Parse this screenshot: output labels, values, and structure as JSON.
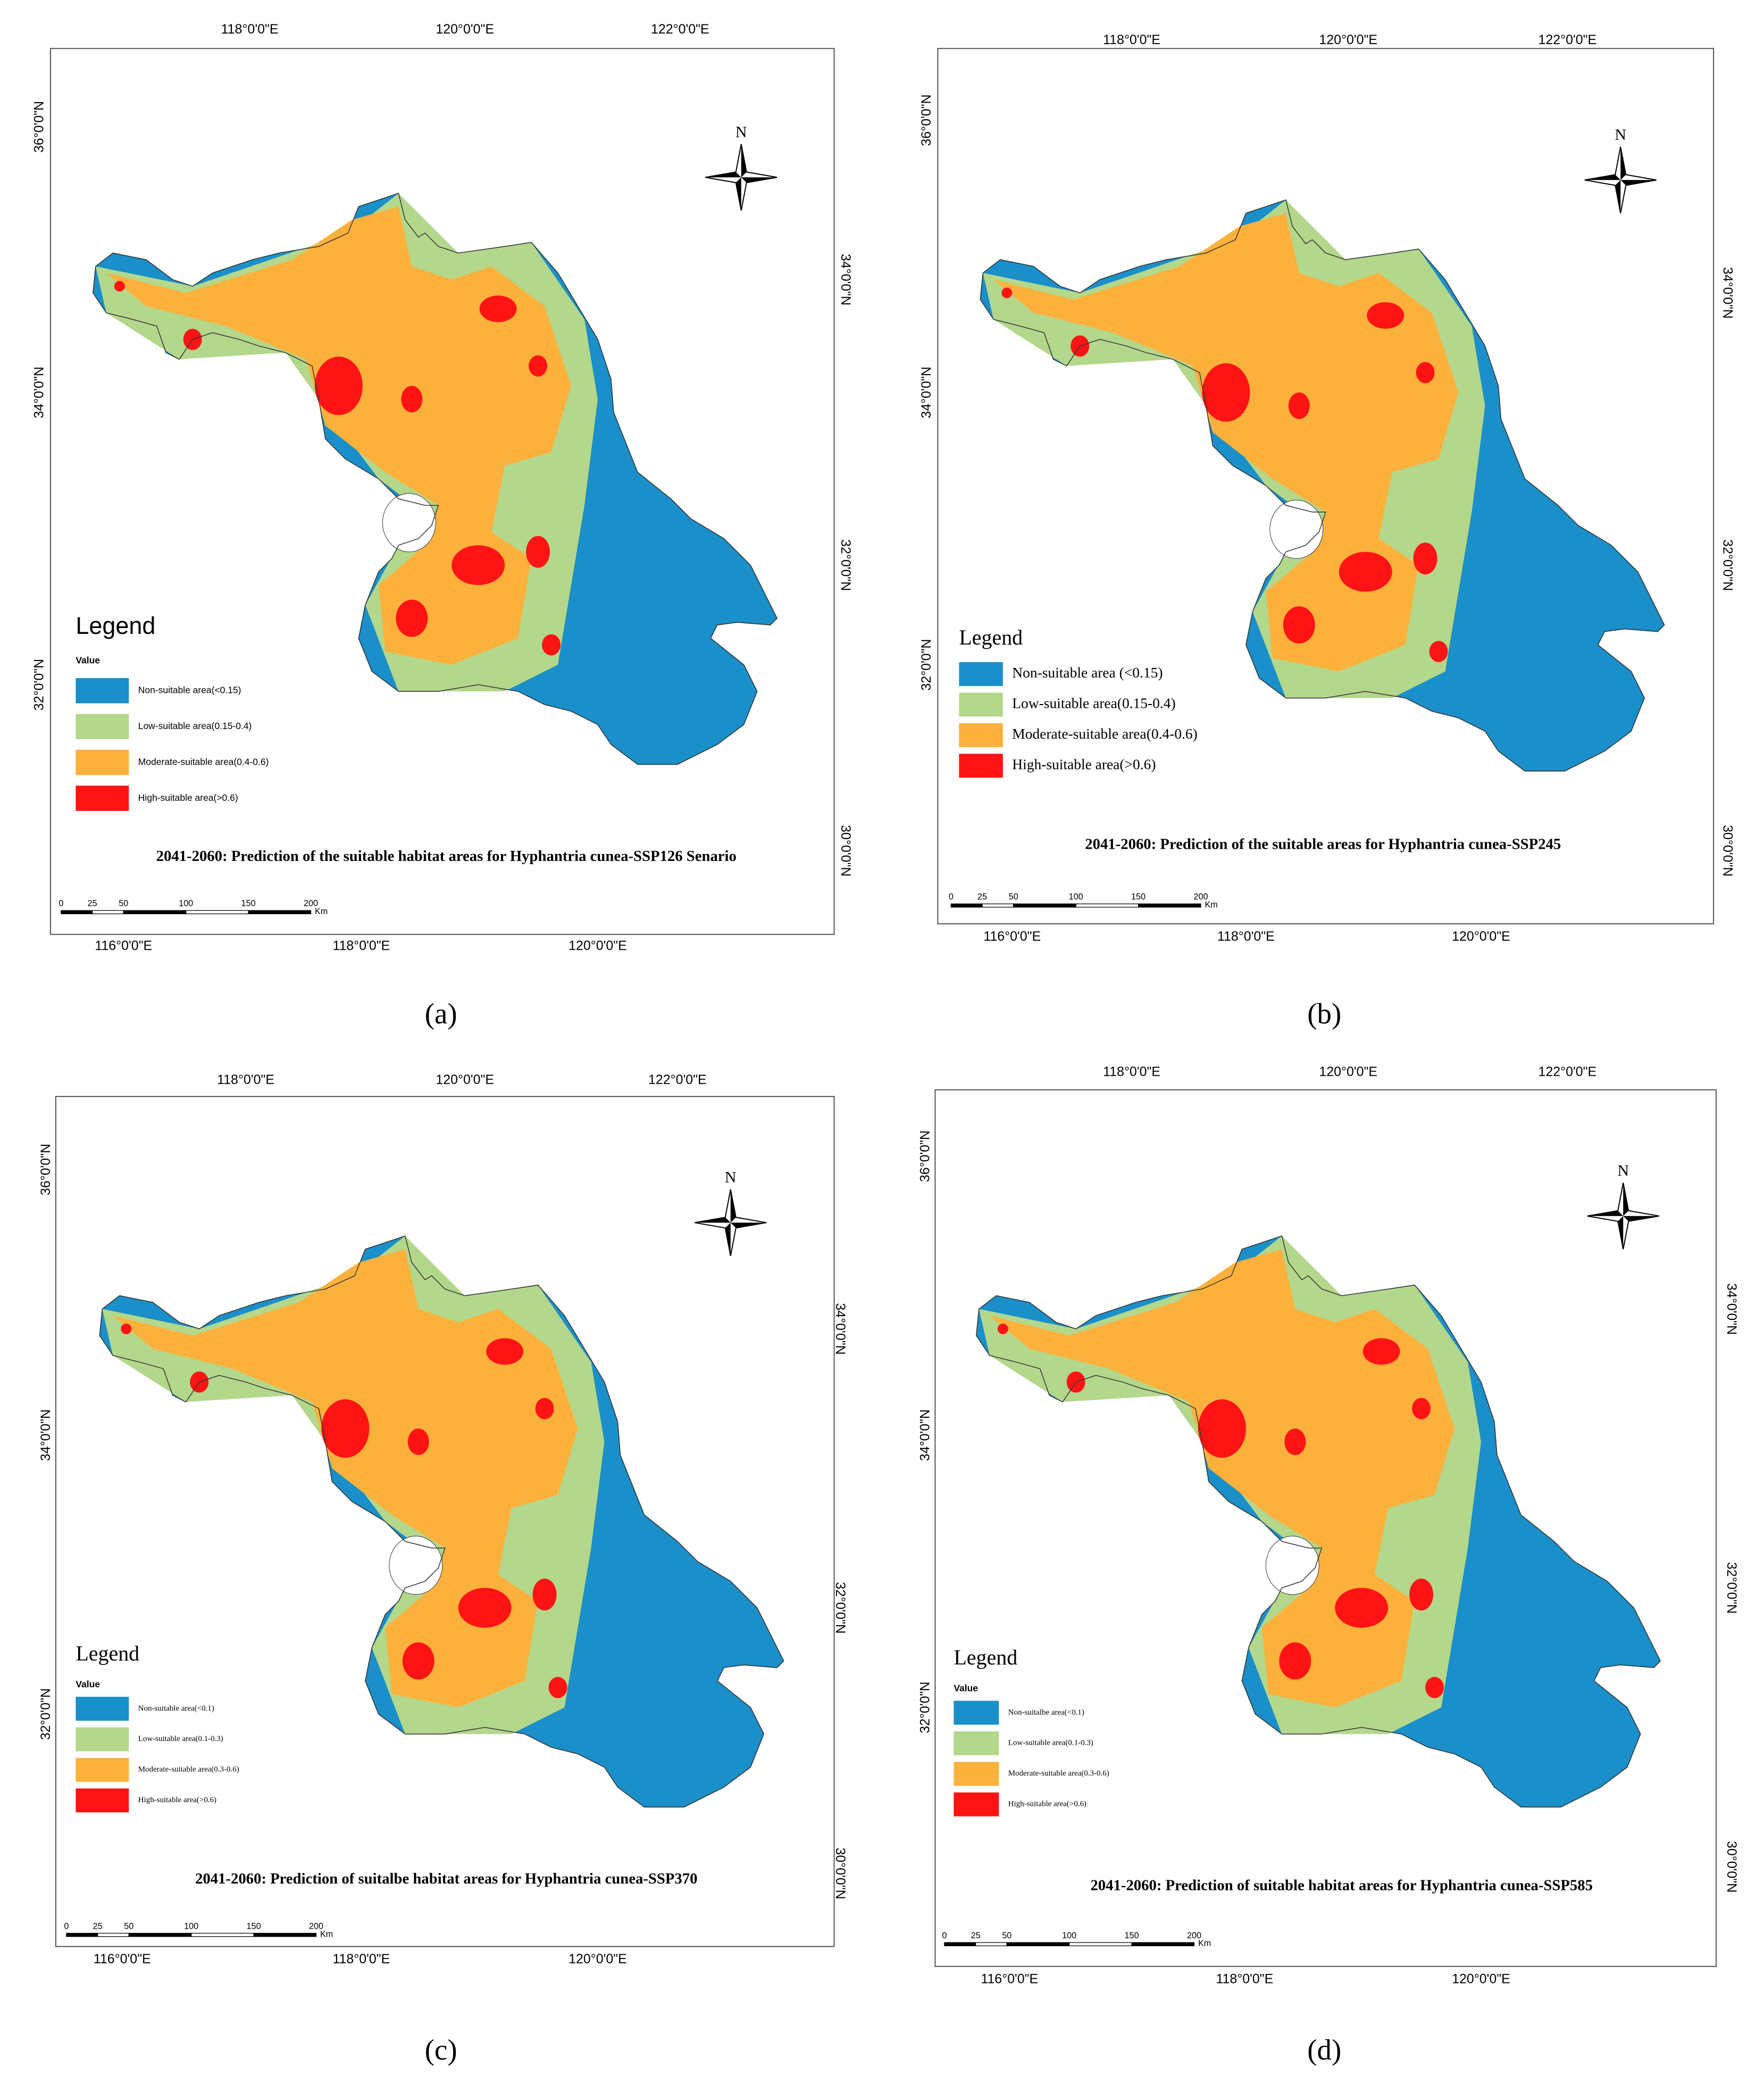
{
  "panels": [
    {
      "caption": "(a)",
      "title": "2041-2060:  Prediction of the suitable habitat areas for Hyphantria cunea-SSP126 Senario",
      "top_labels": [
        "118°0'0\"E",
        "120°0'0\"E",
        "122°0'0\"E"
      ],
      "bottom_labels": [
        "116°0'0\"E",
        "118°0'0\"E",
        "120°0'0\"E"
      ],
      "left_labels": [
        "36°0'0\"N",
        "34°0'0\"N",
        "32°0'0\"N"
      ],
      "right_labels": [
        "34°0'0\"N",
        "32°0'0\"N",
        "30°0'0\"N"
      ],
      "north": "N",
      "legend_title": "Legend",
      "legend_subtitle": "Value",
      "legend_items": [
        {
          "label": "Non-suitable area(<0.15)",
          "color": "#1a8fc9"
        },
        {
          "label": "Low-suitable area(0.15-0.4)",
          "color": "#b3d78b"
        },
        {
          "label": "Moderate-suitable area(0.4-0.6)",
          "color": "#fcb13c"
        },
        {
          "label": "High-suitable area(>0.6)",
          "color": "#fe1414"
        }
      ],
      "scale": {
        "ticks": [
          0,
          25,
          50,
          100,
          150,
          200
        ],
        "unit": "Km"
      }
    },
    {
      "caption": "(b)",
      "title": "2041-2060: Prediction of the suitable areas for Hyphantria cunea-SSP245",
      "top_labels": [
        "118°0'0\"E",
        "120°0'0\"E",
        "122°0'0\"E"
      ],
      "bottom_labels": [
        "116°0'0\"E",
        "118°0'0\"E",
        "120°0'0\"E"
      ],
      "left_labels": [
        "36°0'0\"N",
        "34°0'0\"N",
        "32°0'0\"N"
      ],
      "right_labels": [
        "34°0'0\"N",
        "32°0'0\"N",
        "30°0'0\"N"
      ],
      "north": "N",
      "legend_title": "Legend",
      "legend_items": [
        {
          "label": "Non-suitable area (<0.15)",
          "color": "#1a8fc9"
        },
        {
          "label": "Low-suitable area(0.15-0.4)",
          "color": "#b3d78b"
        },
        {
          "label": "Moderate-suitable area(0.4-0.6)",
          "color": "#fcb13c"
        },
        {
          "label": "High-suitable area(>0.6)",
          "color": "#fe1414"
        }
      ],
      "scale": {
        "ticks": [
          0,
          25,
          50,
          100,
          150,
          200
        ],
        "unit": "Km"
      }
    },
    {
      "caption": "(c)",
      "title": "2041-2060: Prediction of suitalbe habitat areas for Hyphantria cunea-SSP370",
      "top_labels": [
        "118°0'0\"E",
        "120°0'0\"E",
        "122°0'0\"E"
      ],
      "bottom_labels": [
        "116°0'0\"E",
        "118°0'0\"E",
        "120°0'0\"E"
      ],
      "left_labels": [
        "36°0'0\"N",
        "34°0'0\"N",
        "32°0'0\"N"
      ],
      "right_labels": [
        "34°0'0\"N",
        "32°0'0\"N",
        "30°0'0\"N"
      ],
      "north": "N",
      "legend_title": "Legend",
      "legend_subtitle": "Value",
      "legend_items": [
        {
          "label": "Non-suitable area(<0.1)",
          "color": "#1a8fc9"
        },
        {
          "label": "Low-suitable area(0.1-0.3)",
          "color": "#b3d78b"
        },
        {
          "label": "Moderate-suitable area(0.3-0.6)",
          "color": "#fcb13c"
        },
        {
          "label": "High-suitable area(>0.6)",
          "color": "#fe1414"
        }
      ],
      "scale": {
        "ticks": [
          0,
          25,
          50,
          100,
          150,
          200
        ],
        "unit": "Km"
      }
    },
    {
      "caption": "(d)",
      "title": "2041-2060: Prediction of suitable habitat areas for Hyphantria cunea-SSP585",
      "top_labels": [
        "118°0'0\"E",
        "120°0'0\"E",
        "122°0'0\"E"
      ],
      "bottom_labels": [
        "116°0'0\"E",
        "118°0'0\"E",
        "120°0'0\"E"
      ],
      "left_labels": [
        "36°0'0\"N",
        "34°0'0\"N",
        "32°0'0\"N"
      ],
      "right_labels": [
        "34°0'0\"N",
        "32°0'0\"N",
        "30°0'0\"N"
      ],
      "north": "N",
      "legend_title": "Legend",
      "legend_subtitle": "Value",
      "legend_items": [
        {
          "label": "Non-suitalbe area(<0.1)",
          "color": "#1a8fc9"
        },
        {
          "label": "Low-suitable area(0.1-0.3)",
          "color": "#b3d78b"
        },
        {
          "label": "Moderate-suitable area(0.3-0.6)",
          "color": "#fcb13c"
        },
        {
          "label": "High-suitable area(>0.6)",
          "color": "#fe1414"
        }
      ],
      "scale": {
        "ticks": [
          0,
          25,
          50,
          100,
          150,
          200
        ],
        "unit": "Km"
      }
    }
  ]
}
